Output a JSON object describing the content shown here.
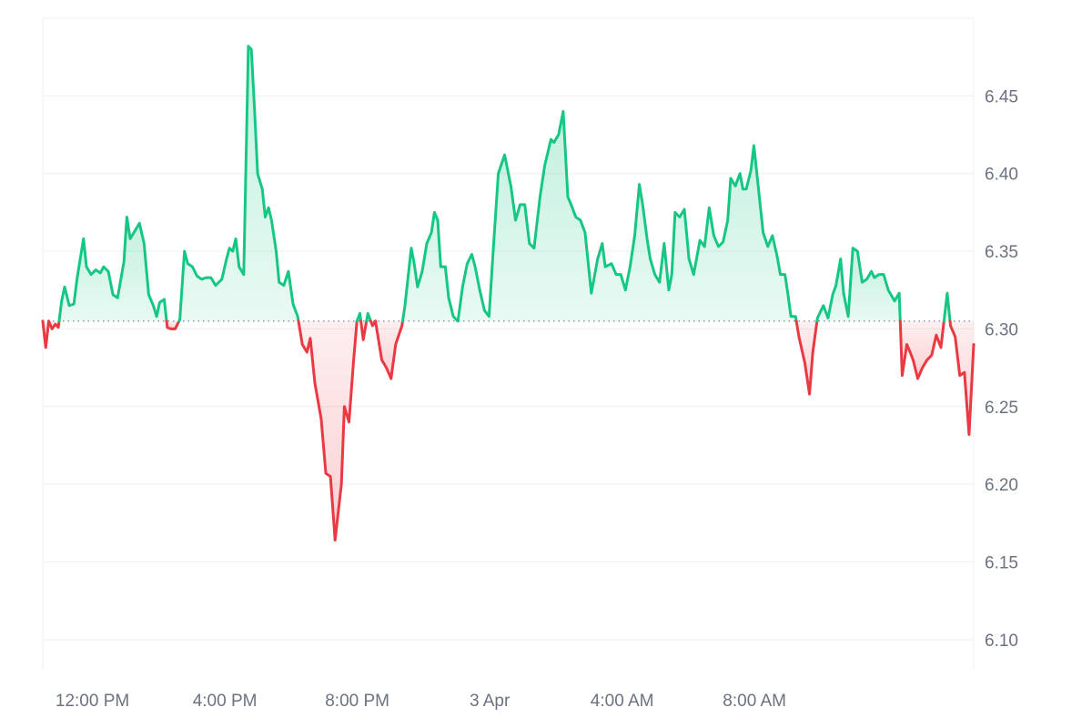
{
  "chart_data": {
    "type": "line",
    "baseline": 6.305,
    "ylim": [
      6.08,
      6.5
    ],
    "y_ticks": [
      6.1,
      6.15,
      6.2,
      6.25,
      6.3,
      6.35,
      6.4,
      6.45
    ],
    "y_tick_labels": [
      "6.10",
      "6.15",
      "6.20",
      "6.25",
      "6.30",
      "6.35",
      "6.40",
      "6.45"
    ],
    "x_ticks": [
      {
        "label": "12:00 PM",
        "hours": 1.5
      },
      {
        "label": "4:00 PM",
        "hours": 5.5
      },
      {
        "label": "8:00 PM",
        "hours": 9.5
      },
      {
        "label": "3 Apr",
        "hours": 13.5
      },
      {
        "label": "4:00 AM",
        "hours": 17.5
      },
      {
        "label": "8:00 AM",
        "hours": 21.5
      }
    ],
    "colors": {
      "up": "#16c784",
      "down": "#ea3943",
      "up_fill": "#16c784",
      "down_fill": "#ea3943",
      "volume": "#e8ebf0",
      "grid": "#eff2f5",
      "baseline": "#7c8594"
    },
    "series": [
      {
        "points": [
          [
            0.0,
            6.305
          ],
          [
            0.09,
            6.288
          ],
          [
            0.18,
            6.305
          ],
          [
            0.28,
            6.3
          ],
          [
            0.38,
            6.303
          ],
          [
            0.47,
            6.301
          ],
          [
            0.57,
            6.318
          ],
          [
            0.66,
            6.327
          ],
          [
            0.8,
            6.315
          ],
          [
            0.94,
            6.316
          ],
          [
            1.04,
            6.333
          ],
          [
            1.23,
            6.358
          ],
          [
            1.32,
            6.34
          ],
          [
            1.46,
            6.335
          ],
          [
            1.6,
            6.338
          ],
          [
            1.74,
            6.336
          ],
          [
            1.84,
            6.34
          ],
          [
            1.98,
            6.337
          ],
          [
            2.12,
            6.322
          ],
          [
            2.26,
            6.32
          ],
          [
            2.45,
            6.343
          ],
          [
            2.54,
            6.372
          ],
          [
            2.64,
            6.358
          ],
          [
            2.78,
            6.363
          ],
          [
            2.92,
            6.368
          ],
          [
            3.06,
            6.355
          ],
          [
            3.2,
            6.322
          ],
          [
            3.34,
            6.315
          ],
          [
            3.44,
            6.308
          ],
          [
            3.53,
            6.317
          ],
          [
            3.67,
            6.319
          ],
          [
            3.76,
            6.301
          ],
          [
            3.86,
            6.3
          ],
          [
            4.0,
            6.3
          ],
          [
            4.14,
            6.306
          ],
          [
            4.28,
            6.35
          ],
          [
            4.38,
            6.342
          ],
          [
            4.52,
            6.34
          ],
          [
            4.66,
            6.334
          ],
          [
            4.8,
            6.332
          ],
          [
            4.94,
            6.333
          ],
          [
            5.08,
            6.333
          ],
          [
            5.22,
            6.328
          ],
          [
            5.41,
            6.332
          ],
          [
            5.55,
            6.345
          ],
          [
            5.64,
            6.352
          ],
          [
            5.74,
            6.35
          ],
          [
            5.83,
            6.358
          ],
          [
            5.93,
            6.34
          ],
          [
            6.07,
            6.335
          ],
          [
            6.21,
            6.482
          ],
          [
            6.3,
            6.48
          ],
          [
            6.4,
            6.44
          ],
          [
            6.49,
            6.4
          ],
          [
            6.63,
            6.39
          ],
          [
            6.72,
            6.372
          ],
          [
            6.82,
            6.378
          ],
          [
            6.91,
            6.37
          ],
          [
            7.05,
            6.35
          ],
          [
            7.14,
            6.33
          ],
          [
            7.28,
            6.328
          ],
          [
            7.42,
            6.337
          ],
          [
            7.56,
            6.316
          ],
          [
            7.7,
            6.308
          ],
          [
            7.84,
            6.29
          ],
          [
            7.98,
            6.285
          ],
          [
            8.08,
            6.294
          ],
          [
            8.22,
            6.265
          ],
          [
            8.41,
            6.242
          ],
          [
            8.55,
            6.207
          ],
          [
            8.69,
            6.205
          ],
          [
            8.83,
            6.164
          ],
          [
            9.02,
            6.2
          ],
          [
            9.11,
            6.25
          ],
          [
            9.25,
            6.24
          ],
          [
            9.39,
            6.28
          ],
          [
            9.49,
            6.305
          ],
          [
            9.58,
            6.31
          ],
          [
            9.68,
            6.293
          ],
          [
            9.82,
            6.31
          ],
          [
            9.96,
            6.302
          ],
          [
            10.05,
            6.305
          ],
          [
            10.24,
            6.28
          ],
          [
            10.38,
            6.275
          ],
          [
            10.52,
            6.268
          ],
          [
            10.66,
            6.29
          ],
          [
            10.85,
            6.302
          ],
          [
            10.94,
            6.315
          ],
          [
            11.13,
            6.352
          ],
          [
            11.22,
            6.342
          ],
          [
            11.32,
            6.327
          ],
          [
            11.46,
            6.337
          ],
          [
            11.6,
            6.355
          ],
          [
            11.74,
            6.362
          ],
          [
            11.83,
            6.375
          ],
          [
            11.93,
            6.37
          ],
          [
            12.02,
            6.34
          ],
          [
            12.16,
            6.34
          ],
          [
            12.26,
            6.32
          ],
          [
            12.4,
            6.308
          ],
          [
            12.54,
            6.305
          ],
          [
            12.68,
            6.327
          ],
          [
            12.82,
            6.342
          ],
          [
            12.96,
            6.348
          ],
          [
            13.06,
            6.34
          ],
          [
            13.2,
            6.325
          ],
          [
            13.34,
            6.312
          ],
          [
            13.48,
            6.308
          ],
          [
            13.62,
            6.355
          ],
          [
            13.76,
            6.4
          ],
          [
            13.95,
            6.412
          ],
          [
            14.14,
            6.392
          ],
          [
            14.28,
            6.37
          ],
          [
            14.42,
            6.38
          ],
          [
            14.56,
            6.38
          ],
          [
            14.7,
            6.355
          ],
          [
            14.84,
            6.352
          ],
          [
            15.02,
            6.385
          ],
          [
            15.16,
            6.405
          ],
          [
            15.35,
            6.422
          ],
          [
            15.44,
            6.42
          ],
          [
            15.58,
            6.425
          ],
          [
            15.72,
            6.44
          ],
          [
            15.86,
            6.385
          ],
          [
            15.96,
            6.38
          ],
          [
            16.1,
            6.372
          ],
          [
            16.24,
            6.37
          ],
          [
            16.38,
            6.362
          ],
          [
            16.57,
            6.323
          ],
          [
            16.76,
            6.345
          ],
          [
            16.9,
            6.355
          ],
          [
            16.99,
            6.34
          ],
          [
            17.18,
            6.342
          ],
          [
            17.32,
            6.335
          ],
          [
            17.46,
            6.335
          ],
          [
            17.6,
            6.325
          ],
          [
            17.74,
            6.34
          ],
          [
            17.88,
            6.36
          ],
          [
            18.02,
            6.393
          ],
          [
            18.12,
            6.38
          ],
          [
            18.26,
            6.357
          ],
          [
            18.35,
            6.345
          ],
          [
            18.49,
            6.335
          ],
          [
            18.63,
            6.33
          ],
          [
            18.77,
            6.355
          ],
          [
            18.91,
            6.325
          ],
          [
            19.0,
            6.335
          ],
          [
            19.1,
            6.375
          ],
          [
            19.24,
            6.372
          ],
          [
            19.38,
            6.377
          ],
          [
            19.52,
            6.345
          ],
          [
            19.66,
            6.335
          ],
          [
            19.85,
            6.357
          ],
          [
            19.99,
            6.353
          ],
          [
            20.13,
            6.378
          ],
          [
            20.27,
            6.36
          ],
          [
            20.41,
            6.353
          ],
          [
            20.55,
            6.356
          ],
          [
            20.69,
            6.37
          ],
          [
            20.78,
            6.397
          ],
          [
            20.92,
            6.392
          ],
          [
            21.06,
            6.4
          ],
          [
            21.15,
            6.39
          ],
          [
            21.25,
            6.39
          ],
          [
            21.39,
            6.402
          ],
          [
            21.48,
            6.418
          ],
          [
            21.62,
            6.39
          ],
          [
            21.76,
            6.362
          ],
          [
            21.9,
            6.353
          ],
          [
            22.04,
            6.36
          ],
          [
            22.18,
            6.347
          ],
          [
            22.28,
            6.335
          ],
          [
            22.42,
            6.335
          ],
          [
            22.51,
            6.322
          ],
          [
            22.6,
            6.308
          ],
          [
            22.74,
            6.308
          ],
          [
            22.84,
            6.295
          ],
          [
            23.02,
            6.278
          ],
          [
            23.16,
            6.258
          ],
          [
            23.26,
            6.285
          ],
          [
            23.4,
            6.307
          ],
          [
            23.58,
            6.315
          ],
          [
            23.72,
            6.307
          ],
          [
            23.86,
            6.322
          ],
          [
            23.96,
            6.328
          ],
          [
            24.1,
            6.345
          ],
          [
            24.19,
            6.323
          ],
          [
            24.33,
            6.308
          ],
          [
            24.47,
            6.352
          ],
          [
            24.61,
            6.35
          ],
          [
            24.75,
            6.33
          ],
          [
            24.89,
            6.332
          ],
          [
            25.03,
            6.337
          ],
          [
            25.12,
            6.333
          ],
          [
            25.26,
            6.335
          ],
          [
            25.4,
            6.335
          ],
          [
            25.54,
            6.325
          ],
          [
            25.73,
            6.318
          ],
          [
            25.87,
            6.323
          ],
          [
            25.96,
            6.27
          ],
          [
            26.1,
            6.29
          ],
          [
            26.2,
            6.285
          ],
          [
            26.29,
            6.28
          ],
          [
            26.43,
            6.268
          ],
          [
            26.57,
            6.275
          ],
          [
            26.71,
            6.28
          ],
          [
            26.85,
            6.283
          ],
          [
            26.99,
            6.296
          ],
          [
            27.13,
            6.288
          ],
          [
            27.32,
            6.323
          ],
          [
            27.42,
            6.302
          ],
          [
            27.56,
            6.295
          ],
          [
            27.7,
            6.27
          ],
          [
            27.84,
            6.272
          ],
          [
            27.98,
            6.232
          ],
          [
            28.12,
            6.29
          ]
        ]
      }
    ],
    "volume": {
      "steps": [
        [
          0.0,
          6.038
        ],
        [
          1.0,
          6.038
        ],
        [
          1.2,
          6.039
        ],
        [
          1.4,
          6.04
        ],
        [
          1.8,
          6.041
        ],
        [
          2.6,
          6.04
        ],
        [
          3.2,
          6.041
        ],
        [
          3.8,
          6.042
        ],
        [
          4.4,
          6.045
        ],
        [
          5.4,
          6.046
        ],
        [
          6.0,
          6.05
        ],
        [
          6.4,
          6.056
        ],
        [
          7.2,
          6.058
        ],
        [
          8.0,
          6.059
        ],
        [
          9.0,
          6.061
        ],
        [
          10.0,
          6.064
        ],
        [
          11.0,
          6.066
        ],
        [
          12.0,
          6.067
        ],
        [
          13.0,
          6.068
        ],
        [
          14.0,
          6.07
        ],
        [
          15.0,
          6.071
        ],
        [
          16.0,
          6.072
        ],
        [
          17.0,
          6.073
        ],
        [
          18.0,
          6.074
        ],
        [
          19.0,
          6.075
        ],
        [
          20.0,
          6.075
        ],
        [
          21.0,
          6.076
        ],
        [
          22.0,
          6.077
        ],
        [
          23.0,
          6.078
        ],
        [
          24.0,
          6.079
        ],
        [
          25.0,
          6.079
        ],
        [
          26.0,
          6.077
        ],
        [
          27.0,
          6.08
        ],
        [
          28.12,
          6.08
        ]
      ]
    }
  }
}
